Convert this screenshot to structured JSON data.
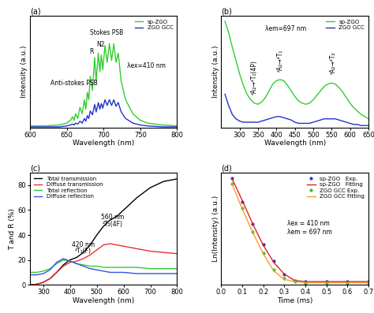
{
  "chart_data": [
    {
      "type": "line",
      "title": "(a)",
      "x_label": "Wavelength (nm)",
      "y_label": "Intensity (a.u.)",
      "x": [
        600,
        620,
        640,
        650,
        655,
        658,
        660,
        662,
        665,
        668,
        671,
        674,
        676,
        678,
        680,
        682,
        685,
        688,
        690,
        693,
        695,
        697,
        699,
        702,
        705,
        708,
        711,
        714,
        717,
        720,
        724,
        730,
        740,
        750,
        760,
        780,
        800
      ],
      "series": [
        {
          "name": "sp-ZGO",
          "color": "#33cc33",
          "line_style": "solid",
          "values": [
            0.02,
            0.02,
            0.03,
            0.05,
            0.08,
            0.12,
            0.08,
            0.15,
            0.1,
            0.22,
            0.15,
            0.3,
            0.2,
            0.38,
            0.3,
            0.55,
            0.4,
            0.75,
            0.5,
            0.8,
            0.6,
            0.78,
            0.62,
            0.88,
            0.7,
            0.9,
            0.72,
            0.9,
            0.7,
            0.8,
            0.5,
            0.3,
            0.15,
            0.08,
            0.05,
            0.03,
            0.02
          ]
        },
        {
          "name": "ZGO GCC",
          "color": "#2233cc",
          "line_style": "solid",
          "values": [
            0.01,
            0.01,
            0.01,
            0.02,
            0.03,
            0.04,
            0.03,
            0.05,
            0.04,
            0.07,
            0.05,
            0.1,
            0.07,
            0.13,
            0.1,
            0.18,
            0.14,
            0.25,
            0.17,
            0.27,
            0.2,
            0.26,
            0.21,
            0.3,
            0.24,
            0.3,
            0.24,
            0.3,
            0.23,
            0.27,
            0.17,
            0.1,
            0.05,
            0.03,
            0.02,
            0.01,
            0.01
          ]
        }
      ],
      "xlim": [
        600,
        800
      ],
      "xticks": [
        600,
        650,
        700,
        750,
        800
      ],
      "ylim": [
        0,
        1.2
      ],
      "tick_labels": "x",
      "legend": "upper right",
      "annotations": [
        "Anti-stokes PSB",
        "R",
        "N2",
        "Stokes PSB",
        "λex=410 nm"
      ]
    },
    {
      "type": "line",
      "title": "(b)",
      "x_label": "Wavelength (nm)",
      "y_label": "Intensity (a.u.)",
      "x": [
        260,
        270,
        280,
        290,
        300,
        310,
        320,
        330,
        340,
        350,
        360,
        370,
        380,
        390,
        400,
        410,
        420,
        430,
        440,
        450,
        460,
        470,
        480,
        490,
        500,
        510,
        520,
        530,
        540,
        550,
        560,
        570,
        580,
        590,
        600,
        610,
        620,
        630,
        640,
        650
      ],
      "series": [
        {
          "name": "sp-ZGO",
          "color": "#33cc33",
          "line_style": "solid",
          "values": [
            0.95,
            0.85,
            0.72,
            0.6,
            0.48,
            0.38,
            0.3,
            0.25,
            0.22,
            0.21,
            0.23,
            0.27,
            0.33,
            0.39,
            0.42,
            0.43,
            0.42,
            0.38,
            0.33,
            0.28,
            0.24,
            0.22,
            0.21,
            0.22,
            0.25,
            0.29,
            0.33,
            0.37,
            0.39,
            0.4,
            0.39,
            0.36,
            0.32,
            0.27,
            0.22,
            0.18,
            0.15,
            0.12,
            0.1,
            0.08
          ]
        },
        {
          "name": "ZGO GCC",
          "color": "#2233cc",
          "line_style": "solid",
          "values": [
            0.3,
            0.2,
            0.12,
            0.08,
            0.06,
            0.05,
            0.05,
            0.05,
            0.05,
            0.05,
            0.06,
            0.07,
            0.08,
            0.09,
            0.1,
            0.1,
            0.09,
            0.08,
            0.07,
            0.05,
            0.04,
            0.04,
            0.04,
            0.04,
            0.05,
            0.06,
            0.07,
            0.08,
            0.08,
            0.08,
            0.08,
            0.07,
            0.06,
            0.05,
            0.04,
            0.03,
            0.03,
            0.02,
            0.02,
            0.02
          ]
        }
      ],
      "xlim": [
        250,
        650
      ],
      "xticks": [
        300,
        350,
        400,
        450,
        500,
        550,
        600,
        650
      ],
      "ylim": [
        0,
        1.0
      ],
      "tick_labels": "x",
      "legend": "upper right",
      "annotations": [
        "⁴A₂→⁴T₁(4P)",
        "⁴A₂→⁴T₁",
        "⁴A₂→⁴T₂",
        "λem=697 nm"
      ]
    },
    {
      "type": "line",
      "title": "(c)",
      "x_label": "Wavelength (nm)",
      "y_label": "T and R (%)",
      "x": [
        250,
        275,
        300,
        325,
        350,
        375,
        400,
        425,
        450,
        475,
        500,
        525,
        550,
        575,
        600,
        650,
        700,
        750,
        800
      ],
      "series": [
        {
          "name": "Total transmission",
          "color": "#000000",
          "line_style": "solid",
          "values": [
            0,
            0.5,
            2,
            5,
            10,
            16,
            20,
            22,
            26,
            32,
            40,
            47,
            52,
            55,
            60,
            70,
            78,
            83,
            85
          ]
        },
        {
          "name": "Diffuse transmission",
          "color": "#e83030",
          "line_style": "solid",
          "values": [
            0,
            0.5,
            2,
            5,
            10,
            15,
            18,
            19,
            21,
            24,
            28,
            32,
            33,
            32,
            31,
            29,
            27,
            26,
            25
          ]
        },
        {
          "name": "Total reflection",
          "color": "#33cc33",
          "line_style": "solid",
          "values": [
            10,
            10,
            11,
            13,
            17,
            20,
            19,
            17,
            16,
            15,
            15,
            14,
            14,
            14,
            14,
            14,
            13,
            13,
            13
          ]
        },
        {
          "name": "Diffuse reflection",
          "color": "#3355dd",
          "line_style": "solid",
          "values": [
            8,
            8,
            9,
            12,
            18,
            21,
            19,
            17,
            15,
            13,
            12,
            11,
            10,
            10,
            10,
            9,
            9,
            9,
            9
          ]
        }
      ],
      "xlim": [
        250,
        800
      ],
      "xticks": [
        300,
        400,
        500,
        600,
        700,
        800
      ],
      "ylim": [
        0,
        90
      ],
      "yticks": [
        0,
        20,
        40,
        60,
        80
      ],
      "legend": "upper left",
      "annotations": [
        "420 nm",
        "⁴T₁(F)",
        "560 nm",
        "⁴T₂(4F)"
      ]
    },
    {
      "type": "line",
      "title": "(d)",
      "x_label": "Time (ms)",
      "y_label": "Ln(Intensity) (a.u.)",
      "x": [
        0.05,
        0.1,
        0.15,
        0.2,
        0.25,
        0.3,
        0.35,
        0.4,
        0.5,
        0.6,
        0.7
      ],
      "series": [
        {
          "name": "sp-ZGO   Exp.",
          "color": "#3030d0",
          "marker": "o",
          "line_style": "none",
          "values": [
            1.0,
            0.78,
            0.57,
            0.38,
            0.22,
            0.1,
            0.04,
            0.03,
            0.03,
            0.03,
            0.03
          ]
        },
        {
          "name": "sp-ZGO   Fitting",
          "color": "#e02020",
          "line_style": "solid",
          "values": [
            1.0,
            0.79,
            0.57,
            0.37,
            0.21,
            0.1,
            0.04,
            0.03,
            0.03,
            0.03,
            0.03
          ]
        },
        {
          "name": "ZGO GCC Exp.",
          "color": "#30c030",
          "marker": "o",
          "line_style": "none",
          "values": [
            0.95,
            0.72,
            0.5,
            0.3,
            0.14,
            0.06,
            0.03,
            0.02,
            0.02,
            0.02,
            0.02
          ]
        },
        {
          "name": "ZGO GCC Fitting",
          "color": "#f0a030",
          "line_style": "solid",
          "values": [
            0.95,
            0.71,
            0.49,
            0.29,
            0.13,
            0.05,
            0.03,
            0.02,
            0.02,
            0.02,
            0.02
          ]
        }
      ],
      "xlim": [
        0,
        0.7
      ],
      "xticks": [
        {
          "value": 0,
          "label": "0.0"
        },
        0.1,
        0.2,
        0.3,
        0.4,
        0.5,
        0.6,
        0.7
      ],
      "ylim": [
        0,
        1.05
      ],
      "tick_labels": "x",
      "legend": "upper right",
      "annotations": [
        "λex = 410 nm",
        "λem = 697 nm"
      ]
    }
  ]
}
